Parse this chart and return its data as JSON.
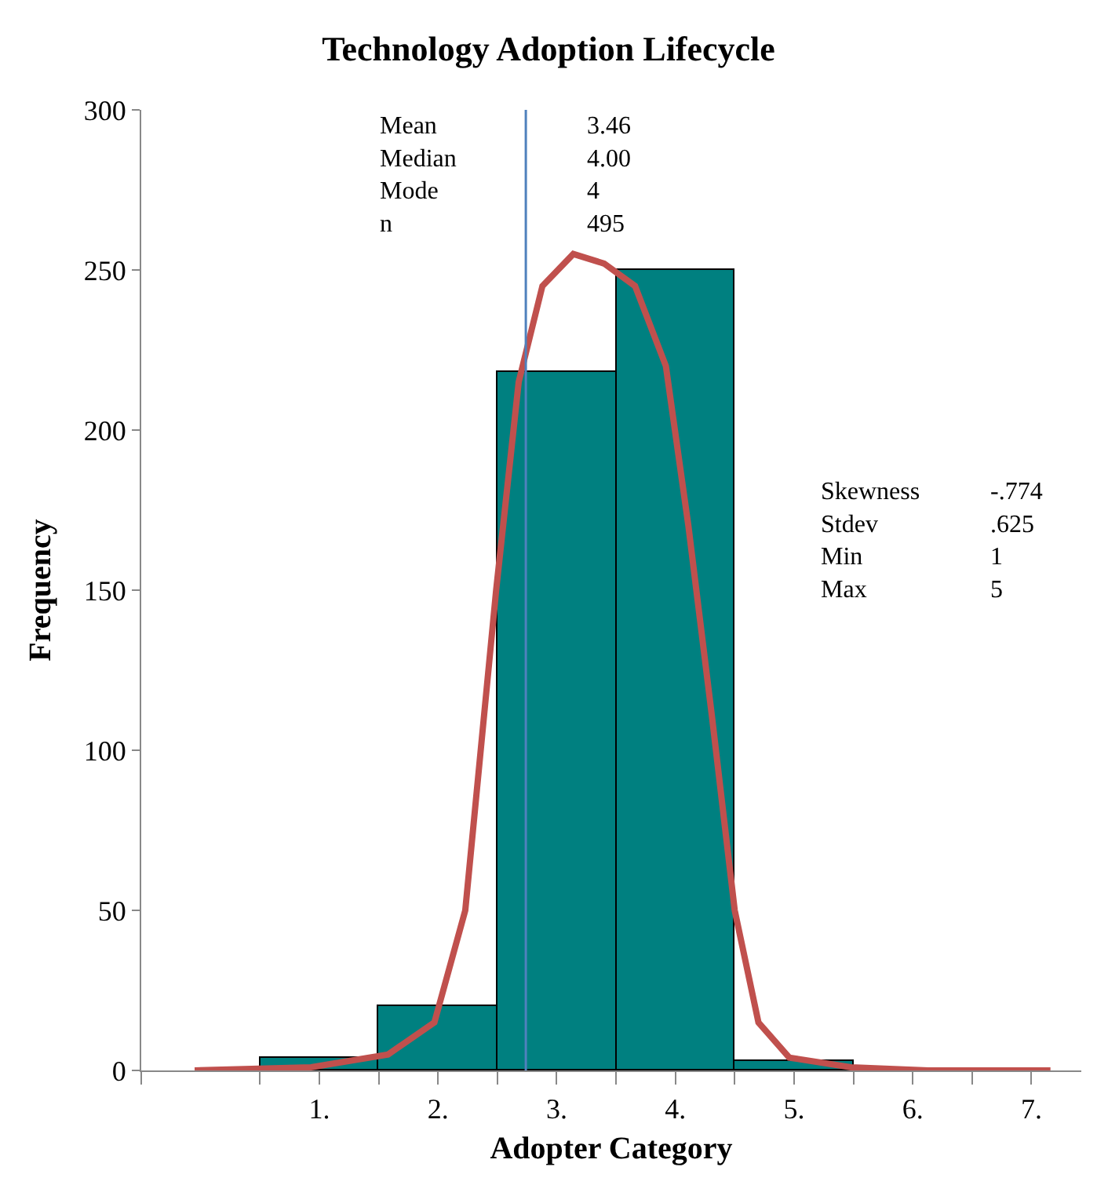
{
  "chart_data": {
    "type": "histogram",
    "title": "Technology Adoption Lifecycle",
    "xlabel": "Adopter Category",
    "ylabel": "Frequency",
    "bins": [
      0.5,
      1.5,
      2.5,
      3.5,
      4.5,
      5.5
    ],
    "values": [
      4,
      20,
      218,
      250,
      3
    ],
    "color": "#008080",
    "series": [
      {
        "type": "line",
        "color": "#c0504d",
        "x": [
          -0.05,
          0.93,
          1.58,
          1.97,
          2.23,
          2.49,
          2.68,
          2.88,
          3.14,
          3.4,
          3.66,
          3.92,
          4.11,
          4.31,
          4.5,
          4.7,
          4.96,
          5.48,
          6.13,
          7.16
        ],
        "values": [
          0,
          1,
          5,
          15,
          50,
          150,
          215,
          245,
          255,
          252,
          245,
          220,
          170,
          110,
          50,
          15,
          4,
          1,
          0,
          0
        ]
      }
    ],
    "xlim": [
      -0.5,
      7.42
    ],
    "xticks": [
      {
        "value": -0.5,
        "label": null
      },
      {
        "value": 0.5,
        "label": null
      },
      {
        "value": 1.5,
        "label": null
      },
      {
        "value": 2.5,
        "label": null
      },
      {
        "value": 3.5,
        "label": null
      },
      {
        "value": 4.5,
        "label": null
      },
      {
        "value": 5.5,
        "label": null
      },
      {
        "value": 6.5,
        "label": null
      },
      {
        "value": 1,
        "label": "1."
      },
      {
        "value": 2,
        "label": "2."
      },
      {
        "value": 3,
        "label": "3."
      },
      {
        "value": 4,
        "label": "4."
      },
      {
        "value": 5,
        "label": "5."
      },
      {
        "value": 6,
        "label": "6."
      },
      {
        "value": 7,
        "label": "7."
      }
    ],
    "ylim": [
      0,
      300
    ],
    "yticks": [
      0,
      50,
      100,
      150,
      200,
      250,
      300
    ],
    "ref_lines": [
      {
        "axis": "x",
        "value": 2.74,
        "color": "#4f81bd"
      }
    ],
    "annotations": [
      "Mean\nMedian\nMode\nn",
      "3.46\n4.00\n4\n495",
      "Skewness\nStdev\nMin\nMax",
      "-.774\n.625\n1\n5"
    ]
  }
}
